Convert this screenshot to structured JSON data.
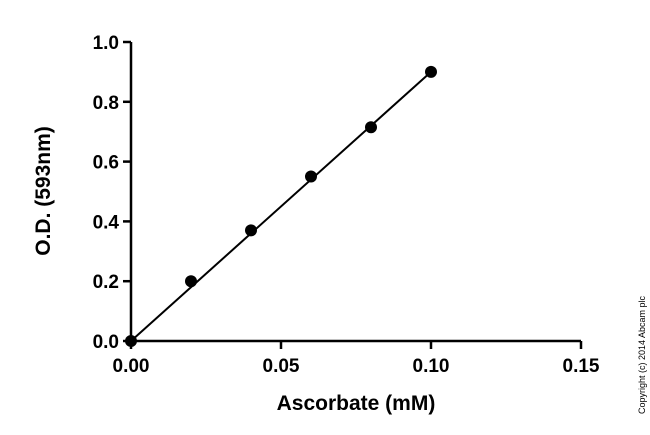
{
  "chart_data": {
    "type": "scatter",
    "xlabel": "Ascorbate (mM)",
    "ylabel": "O.D. (593nm)",
    "xlim": [
      0,
      0.15
    ],
    "ylim": [
      0,
      1.0
    ],
    "x_ticks": [
      "0.00",
      "0.05",
      "0.10",
      "0.15"
    ],
    "y_ticks": [
      "0.0",
      "0.2",
      "0.4",
      "0.6",
      "0.8",
      "1.0"
    ],
    "x_tick_values": [
      0,
      0.05,
      0.1,
      0.15
    ],
    "y_tick_values": [
      0,
      0.2,
      0.4,
      0.6,
      0.8,
      1.0
    ],
    "series": [
      {
        "x": [
          0,
          0.02,
          0.04,
          0.06,
          0.08,
          0.1
        ],
        "y": [
          0.0,
          0.2,
          0.37,
          0.55,
          0.715,
          0.9
        ],
        "marker": "circle",
        "color": "#000000"
      }
    ],
    "fit_line": {
      "x": [
        0,
        0.1
      ],
      "y": [
        0.0,
        0.9
      ],
      "color": "#000000"
    },
    "grid": false,
    "legend": "none"
  },
  "copyright": "Copyright (c) 2014 Abcam plc"
}
